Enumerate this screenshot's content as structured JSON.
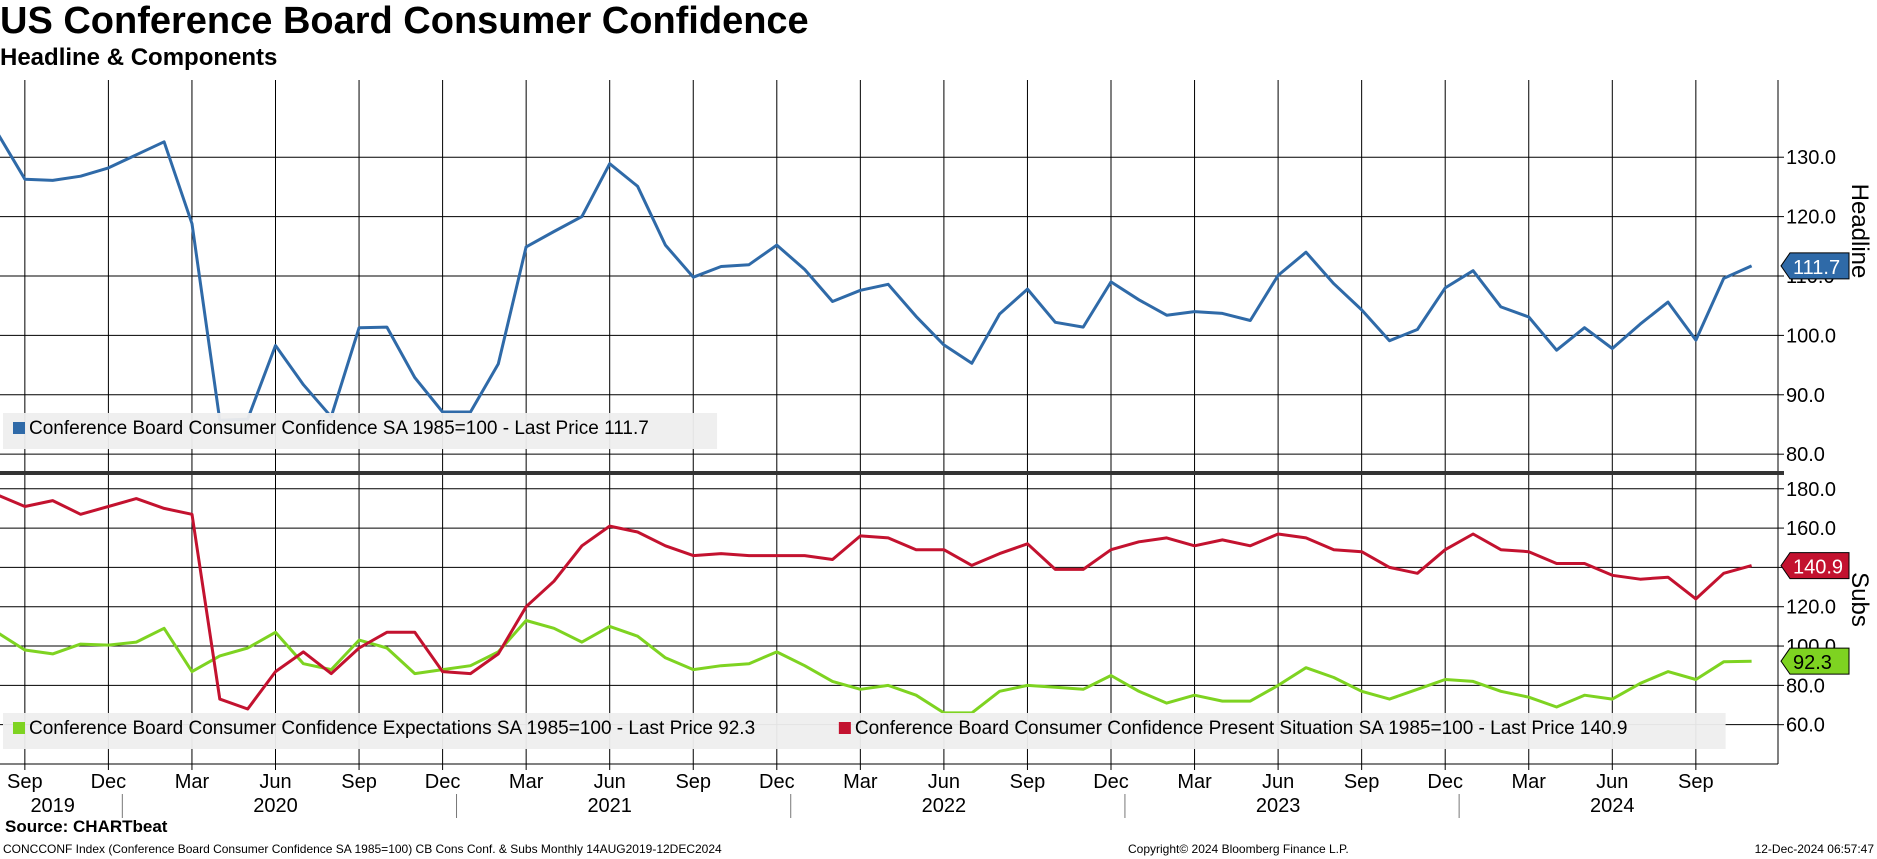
{
  "header": {
    "title": "US Conference Board Consumer Confidence",
    "subtitle": "Headline & Components"
  },
  "footer": {
    "source": "Source: CHARTbeat",
    "ticker": "CONCCONF Index (Conference Board Consumer Confidence SA 1985=100) CB Cons Conf. & Subs  Monthly 14AUG2019-12DEC2024",
    "copyright": "Copyright© 2024 Bloomberg Finance L.P.",
    "timestamp": "12-Dec-2024 06:57:47"
  },
  "chart_data": [
    {
      "type": "line",
      "panel": "top",
      "ylabel": "Headline",
      "ylim": [
        77,
        143
      ],
      "yticks": [
        80,
        90,
        100,
        110,
        120,
        130
      ],
      "ytick_labels": [
        "80.0",
        "90.0",
        "100.0",
        "110.0",
        "120.0",
        "130.0"
      ],
      "grid": true,
      "legend_position": "bottom-left",
      "x": [
        "2019-08",
        "2019-09",
        "2019-10",
        "2019-11",
        "2019-12",
        "2020-01",
        "2020-02",
        "2020-03",
        "2020-04",
        "2020-05",
        "2020-06",
        "2020-07",
        "2020-08",
        "2020-09",
        "2020-10",
        "2020-11",
        "2020-12",
        "2021-01",
        "2021-02",
        "2021-03",
        "2021-04",
        "2021-05",
        "2021-06",
        "2021-07",
        "2021-08",
        "2021-09",
        "2021-10",
        "2021-11",
        "2021-12",
        "2022-01",
        "2022-02",
        "2022-03",
        "2022-04",
        "2022-05",
        "2022-06",
        "2022-07",
        "2022-08",
        "2022-09",
        "2022-10",
        "2022-11",
        "2022-12",
        "2023-01",
        "2023-02",
        "2023-03",
        "2023-04",
        "2023-05",
        "2023-06",
        "2023-07",
        "2023-08",
        "2023-09",
        "2023-10",
        "2023-11",
        "2023-12",
        "2024-01",
        "2024-02",
        "2024-03",
        "2024-04",
        "2024-05",
        "2024-06",
        "2024-07",
        "2024-08",
        "2024-09",
        "2024-10",
        "2024-11"
      ],
      "series": [
        {
          "name": "Conference Board Consumer Confidence SA 1985=100",
          "legend": "Conference Board Consumer Confidence SA 1985=100 - Last Price 111.7",
          "last_label": "111.7",
          "color": "#2f6aa8",
          "values": [
            134.2,
            126.3,
            126.1,
            126.8,
            128.2,
            130.4,
            132.6,
            118.8,
            85.7,
            85.9,
            98.3,
            91.7,
            86.3,
            101.3,
            101.4,
            92.9,
            87.1,
            87.1,
            95.2,
            114.9,
            117.5,
            120.0,
            128.9,
            125.1,
            115.2,
            109.8,
            111.6,
            111.9,
            115.2,
            111.1,
            105.7,
            107.6,
            108.6,
            103.2,
            98.4,
            95.3,
            103.6,
            107.8,
            102.2,
            101.4,
            109.0,
            106.0,
            103.4,
            104.0,
            103.7,
            102.5,
            110.1,
            114.0,
            108.7,
            104.3,
            99.1,
            101.0,
            108.0,
            110.9,
            104.8,
            103.1,
            97.5,
            101.3,
            97.8,
            101.9,
            105.6,
            99.2,
            109.6,
            111.7
          ]
        }
      ]
    },
    {
      "type": "line",
      "panel": "bottom",
      "ylabel": "Subs",
      "ylim": [
        40,
        187
      ],
      "yticks": [
        60,
        80,
        100,
        120,
        140,
        160,
        180
      ],
      "ytick_labels": [
        "60.0",
        "80.0",
        "100.0",
        "120.0",
        "140.0",
        "160.0",
        "180.0"
      ],
      "grid": true,
      "legend_position": "bottom-left",
      "x": [
        "2019-08",
        "2019-09",
        "2019-10",
        "2019-11",
        "2019-12",
        "2020-01",
        "2020-02",
        "2020-03",
        "2020-04",
        "2020-05",
        "2020-06",
        "2020-07",
        "2020-08",
        "2020-09",
        "2020-10",
        "2020-11",
        "2020-12",
        "2021-01",
        "2021-02",
        "2021-03",
        "2021-04",
        "2021-05",
        "2021-06",
        "2021-07",
        "2021-08",
        "2021-09",
        "2021-10",
        "2021-11",
        "2021-12",
        "2022-01",
        "2022-02",
        "2022-03",
        "2022-04",
        "2022-05",
        "2022-06",
        "2022-07",
        "2022-08",
        "2022-09",
        "2022-10",
        "2022-11",
        "2022-12",
        "2023-01",
        "2023-02",
        "2023-03",
        "2023-04",
        "2023-05",
        "2023-06",
        "2023-07",
        "2023-08",
        "2023-09",
        "2023-10",
        "2023-11",
        "2023-12",
        "2024-01",
        "2024-02",
        "2024-03",
        "2024-04",
        "2024-05",
        "2024-06",
        "2024-07",
        "2024-08",
        "2024-09",
        "2024-10",
        "2024-11"
      ],
      "series": [
        {
          "name": "Conference Board Consumer Confidence Expectations SA 1985=100",
          "legend": "Conference Board Consumer Confidence Expectations SA 1985=100 - Last Price 92.3",
          "last_label": "92.3",
          "color": "#7ed321",
          "values": [
            107.0,
            98.0,
            96.0,
            101.0,
            100.5,
            102.0,
            109.0,
            87.0,
            95.0,
            99.0,
            107.0,
            91.0,
            88.0,
            103.0,
            99.0,
            86.0,
            88.0,
            90.0,
            97.0,
            113.0,
            109.0,
            102.0,
            110.0,
            105.0,
            94.0,
            88.0,
            90.0,
            91.0,
            97.0,
            90.0,
            82.0,
            78.0,
            80.0,
            75.0,
            66.0,
            66.0,
            77.0,
            80.0,
            79.0,
            78.0,
            85.0,
            77.0,
            71.0,
            75.0,
            72.0,
            72.0,
            80.0,
            89.0,
            84.0,
            77.0,
            73.0,
            78.0,
            83.0,
            82.0,
            77.0,
            74.0,
            69.0,
            75.0,
            73.0,
            81.0,
            87.0,
            83.0,
            92.0,
            92.3
          ]
        },
        {
          "name": "Conference Board Consumer Confidence Present Situation SA 1985=100",
          "legend": "Conference Board Consumer Confidence Present Situation SA 1985=100 - Last Price 140.9",
          "last_label": "140.9",
          "color": "#c3122f",
          "values": [
            177.0,
            171.0,
            174.0,
            167.0,
            171.0,
            175.0,
            170.0,
            167.0,
            73.0,
            68.0,
            87.0,
            97.0,
            86.0,
            99.0,
            107.0,
            107.0,
            87.0,
            86.0,
            96.0,
            120.0,
            133.0,
            151.0,
            161.0,
            158.0,
            151.0,
            146.0,
            147.0,
            146.0,
            146.0,
            146.0,
            144.0,
            156.0,
            155.0,
            149.0,
            149.0,
            141.0,
            147.0,
            152.0,
            139.0,
            139.0,
            149.0,
            153.0,
            155.0,
            151.0,
            154.0,
            151.0,
            157.0,
            155.0,
            149.0,
            148.0,
            140.0,
            137.0,
            149.0,
            157.0,
            149.0,
            148.0,
            142.0,
            142.0,
            136.0,
            134.0,
            135.0,
            124.0,
            137.0,
            140.9
          ]
        }
      ]
    }
  ],
  "x_axis": {
    "months": [
      {
        "label": "Sep",
        "ym": "2019-09"
      },
      {
        "label": "Dec",
        "ym": "2019-12"
      },
      {
        "label": "Mar",
        "ym": "2020-03"
      },
      {
        "label": "Jun",
        "ym": "2020-06"
      },
      {
        "label": "Sep",
        "ym": "2020-09"
      },
      {
        "label": "Dec",
        "ym": "2020-12"
      },
      {
        "label": "Mar",
        "ym": "2021-03"
      },
      {
        "label": "Jun",
        "ym": "2021-06"
      },
      {
        "label": "Sep",
        "ym": "2021-09"
      },
      {
        "label": "Dec",
        "ym": "2021-12"
      },
      {
        "label": "Mar",
        "ym": "2022-03"
      },
      {
        "label": "Jun",
        "ym": "2022-06"
      },
      {
        "label": "Sep",
        "ym": "2022-09"
      },
      {
        "label": "Dec",
        "ym": "2022-12"
      },
      {
        "label": "Mar",
        "ym": "2023-03"
      },
      {
        "label": "Jun",
        "ym": "2023-06"
      },
      {
        "label": "Sep",
        "ym": "2023-09"
      },
      {
        "label": "Dec",
        "ym": "2023-12"
      },
      {
        "label": "Mar",
        "ym": "2024-03"
      },
      {
        "label": "Jun",
        "ym": "2024-06"
      },
      {
        "label": "Sep",
        "ym": "2024-09"
      }
    ],
    "years": [
      {
        "label": "2019",
        "ym": "2019-10"
      },
      {
        "label": "2020",
        "ym": "2020-06"
      },
      {
        "label": "2021",
        "ym": "2021-06"
      },
      {
        "label": "2022",
        "ym": "2022-06"
      },
      {
        "label": "2023",
        "ym": "2023-06"
      },
      {
        "label": "2024",
        "ym": "2024-06"
      }
    ],
    "year_boundaries": [
      "2020-01",
      "2021-01",
      "2022-01",
      "2023-01",
      "2024-01"
    ]
  }
}
